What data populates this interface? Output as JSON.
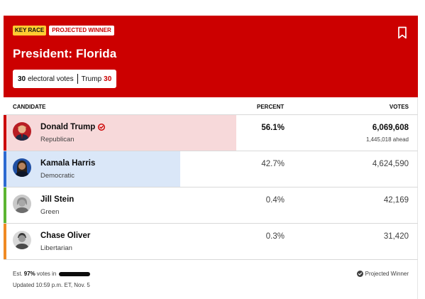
{
  "header": {
    "badge_key_race": "KEY RACE",
    "badge_projected_winner": "PROJECTED WINNER",
    "title": "President: Florida",
    "electoral_votes_count": "30",
    "electoral_votes_label": "electoral votes",
    "leader_name": "Trump",
    "leader_votes": "30",
    "bookmark_icon": "bookmark-icon"
  },
  "table": {
    "headers": {
      "candidate": "CANDIDATE",
      "percent": "PERCENT",
      "votes": "VOTES"
    },
    "rows": [
      {
        "name": "Donald Trump",
        "party": "Republican",
        "percent": "56.1%",
        "percent_value": 56.1,
        "votes": "6,069,608",
        "ahead": "1,445,018 ahead",
        "winner": true,
        "party_color": "#cc0000",
        "share_color": "#f7d9da"
      },
      {
        "name": "Kamala Harris",
        "party": "Democratic",
        "percent": "42.7%",
        "percent_value": 42.7,
        "votes": "4,624,590",
        "ahead": "",
        "winner": false,
        "party_color": "#2d6ad1",
        "share_color": "#dae7f8"
      },
      {
        "name": "Jill Stein",
        "party": "Green",
        "percent": "0.4%",
        "percent_value": 0.4,
        "votes": "42,169",
        "ahead": "",
        "winner": false,
        "party_color": "#5cb531",
        "share_color": "#e3f2da"
      },
      {
        "name": "Chase Oliver",
        "party": "Libertarian",
        "percent": "0.3%",
        "percent_value": 0.3,
        "votes": "31,420",
        "ahead": "",
        "winner": false,
        "party_color": "#f08a23",
        "share_color": "#fdebd9"
      }
    ]
  },
  "footer": {
    "est_prefix": "Est.",
    "est_percent": "97%",
    "est_suffix": "votes in",
    "updated": "Updated 10:59 p.m. ET, Nov. 5",
    "projected_winner": "Projected Winner"
  },
  "colors": {
    "header_bg": "#cc0000",
    "key_race_badge": "#fecb31"
  }
}
